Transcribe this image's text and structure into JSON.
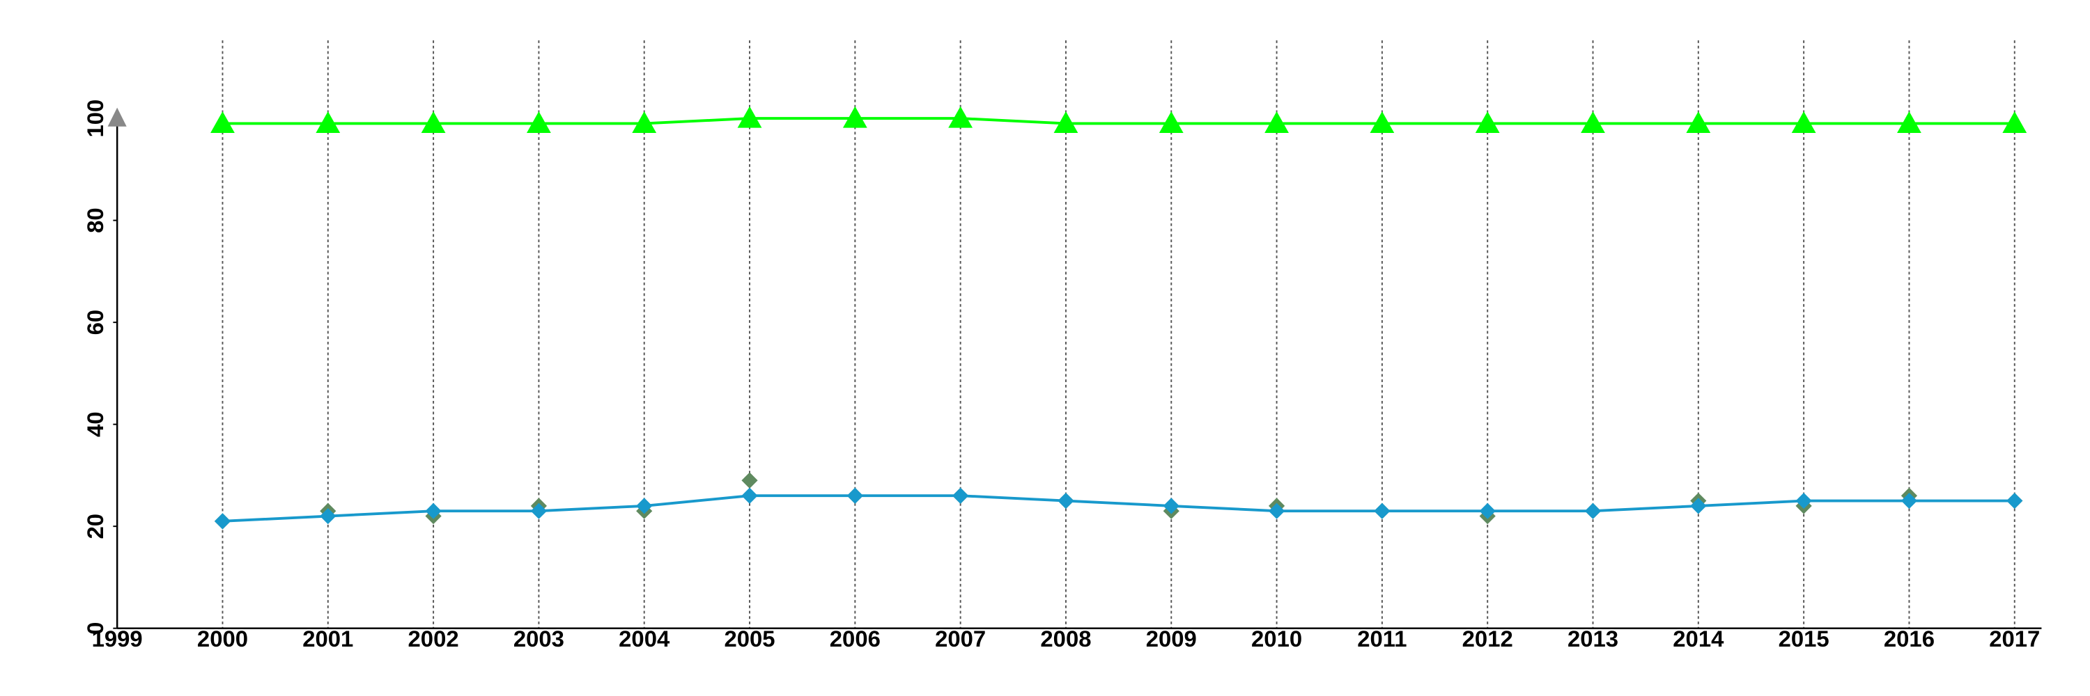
{
  "chart_data": {
    "type": "line",
    "x": [
      2000,
      2001,
      2002,
      2003,
      2004,
      2005,
      2006,
      2007,
      2008,
      2009,
      2010,
      2011,
      2012,
      2013,
      2014,
      2015,
      2016,
      2017
    ],
    "series": [
      {
        "color": "#00ff00",
        "marker": "triangle",
        "line": true,
        "values": [
          99,
          99,
          99,
          99,
          99,
          100,
          100,
          100,
          99,
          99,
          99,
          99,
          99,
          99,
          99,
          99,
          99,
          99
        ]
      },
      {
        "color": "#5f8a5f",
        "marker": "diamond",
        "line": false,
        "values": [
          21,
          23,
          22,
          24,
          23,
          29,
          26,
          26,
          25,
          23,
          24,
          23,
          22,
          23,
          25,
          24,
          26,
          25
        ]
      },
      {
        "color": "#1899cc",
        "marker": "diamond",
        "line": true,
        "values": [
          21,
          22,
          23,
          23,
          24,
          26,
          26,
          26,
          25,
          24,
          23,
          23,
          23,
          23,
          24,
          25,
          25,
          25
        ]
      }
    ],
    "xlim": [
      1999,
      2017
    ],
    "xticks": [
      1999,
      2000,
      2001,
      2002,
      2003,
      2004,
      2005,
      2006,
      2007,
      2008,
      2009,
      2010,
      2011,
      2012,
      2013,
      2014,
      2015,
      2016,
      2017
    ],
    "ylim": [
      0,
      100
    ],
    "yticks": [
      0,
      20,
      40,
      60,
      80,
      100
    ],
    "grid": true
  }
}
